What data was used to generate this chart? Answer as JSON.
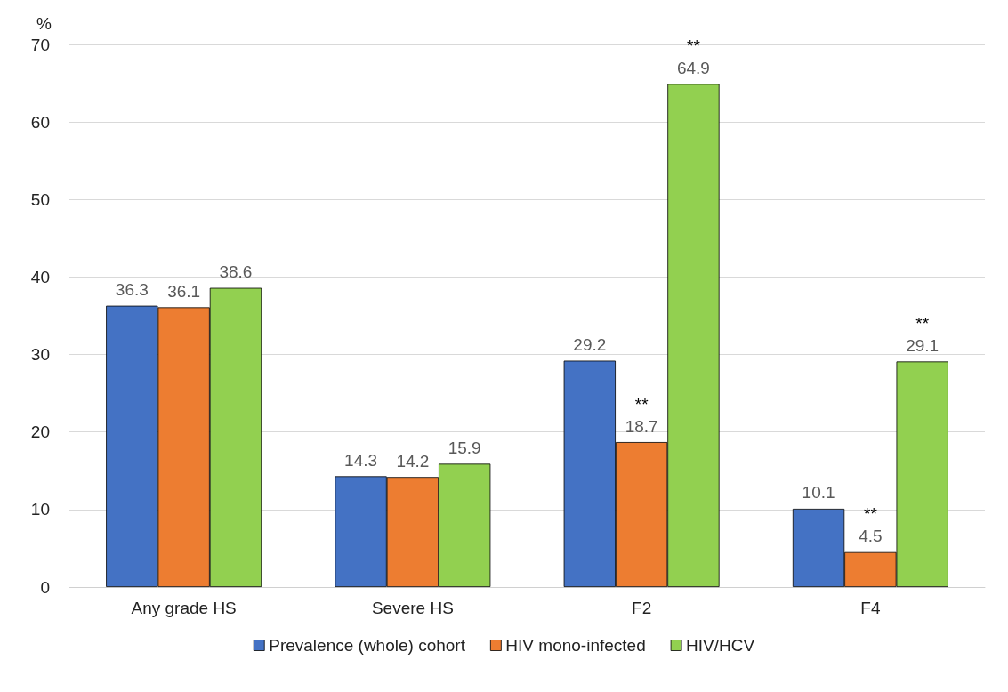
{
  "chart_data": {
    "type": "bar",
    "ylabel": "%",
    "categories": [
      "Any grade HS",
      "Severe HS",
      "F2",
      "F4"
    ],
    "series": [
      {
        "name": "Prevalence (whole) cohort",
        "color": "#4472c4",
        "values": [
          36.3,
          14.3,
          29.2,
          10.1
        ]
      },
      {
        "name": "HIV mono-infected",
        "color": "#ed7d31",
        "values": [
          36.1,
          14.2,
          18.7,
          4.5
        ]
      },
      {
        "name": "HIV/HCV",
        "color": "#92d050",
        "values": [
          38.6,
          15.9,
          64.9,
          29.1
        ]
      }
    ],
    "ylim": [
      0,
      70
    ],
    "yticks": [
      0,
      10,
      20,
      30,
      40,
      50,
      60,
      70
    ],
    "grid": "y",
    "legend": "bottom",
    "data_labels": true,
    "annotations": [
      {
        "text": "**",
        "x": "F2",
        "y": 18.7
      },
      "**",
      {
        "text": "**",
        "x": "F4",
        "y": 4.5
      },
      "**"
    ]
  }
}
